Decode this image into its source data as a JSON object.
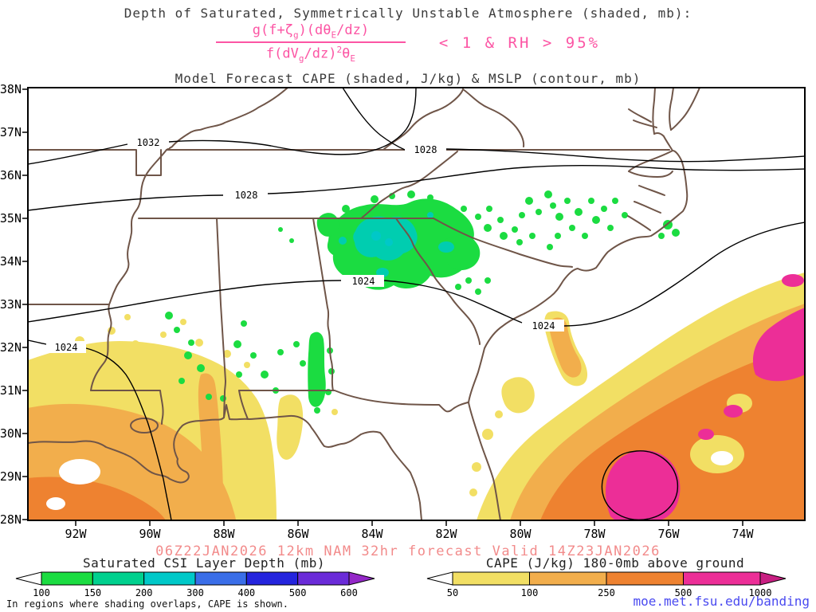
{
  "title": {
    "line1": "Depth of Saturated, Symmetrically Unstable Atmosphere (shaded, mb):",
    "line2": "Model Forecast CAPE (shaded, J/kg) & MSLP (contour, mb)"
  },
  "formula": {
    "num_p1": "g(f+ζ",
    "num_s1": "g",
    "num_p2": ")(dθ",
    "num_s2": "E",
    "num_p3": "/dz)",
    "den_p1": "f(dV",
    "den_s1": "g",
    "den_p2": "/dz)",
    "den_sup": "2",
    "den_p3": "θ",
    "den_s2": "E",
    "condition": "< 1 & RH > 95%"
  },
  "map": {
    "lat_labels": [
      "38N",
      "37N",
      "36N",
      "35N",
      "34N",
      "33N",
      "32N",
      "31N",
      "30N",
      "29N",
      "28N"
    ],
    "lon_labels": [
      "92W",
      "90W",
      "88W",
      "86W",
      "84W",
      "82W",
      "80W",
      "78W",
      "76W",
      "74W"
    ],
    "contour_labels": [
      "1032",
      "1028",
      "1028",
      "1024",
      "1024",
      "1024"
    ]
  },
  "footer": {
    "forecast": "06Z22JAN2026 12km NAM 32hr forecast Valid 14Z23JAN2026",
    "note": "In regions where shading overlaps, CAPE is shown.",
    "url": "moe.met.fsu.edu/banding"
  },
  "legends": {
    "csi": {
      "title": "Saturated CSI Layer Depth (mb)",
      "ticks": [
        "100",
        "150",
        "200",
        "300",
        "400",
        "500",
        "600"
      ],
      "colors": [
        "#ffffff",
        "#1bdc41",
        "#00d08e",
        "#00c8c8",
        "#3a6ee8",
        "#2424dd",
        "#6a2bd8",
        "#9428c8"
      ]
    },
    "cape": {
      "title": "CAPE (J/kg) 180-0mb above ground",
      "ticks": [
        "50",
        "100",
        "250",
        "500",
        "1000"
      ],
      "colors": [
        "#ffffff",
        "#f2df64",
        "#f2ae4c",
        "#ee8230",
        "#ec2e97",
        "#c81f82"
      ]
    }
  },
  "colors": {
    "formula-pink": "#fc55a4",
    "footer-red": "#f28b8b",
    "url-blue": "#4a4af0",
    "border-brown": "#6f5548",
    "contour-black": "#000000"
  }
}
